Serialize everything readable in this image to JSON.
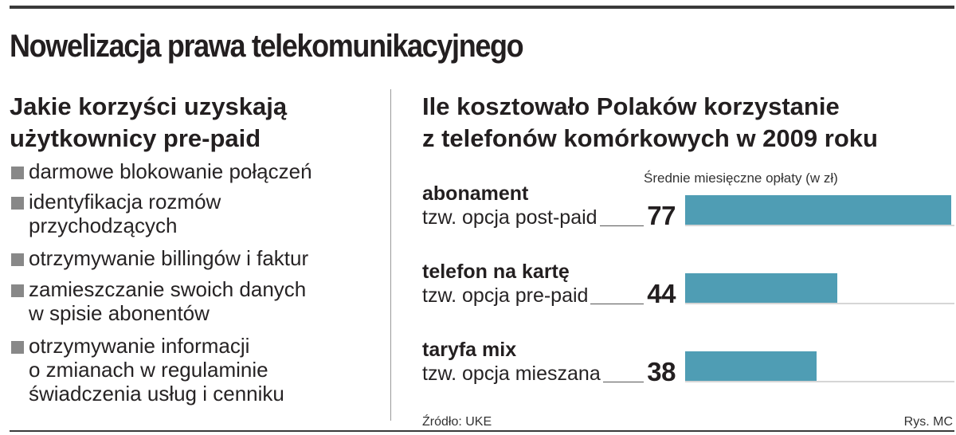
{
  "title": "Nowelizacja prawa telekomunikacyjnego",
  "left_panel": {
    "heading_lines": [
      "Jakie korzyści uzyskają",
      "użytkownicy pre-paid"
    ],
    "benefits": [
      [
        "darmowe blokowanie połączeń"
      ],
      [
        "identyfikacja rozmów",
        "przychodzących"
      ],
      [
        "otrzymywanie billingów i faktur"
      ],
      [
        "zamieszczanie swoich danych",
        "w spisie abonentów"
      ],
      [
        "otrzymywanie informacji",
        "o zmianach w regulaminie",
        "świadczenia usług i cenniku"
      ]
    ]
  },
  "source": "Źródło: UKE",
  "credit": "Rys. MC",
  "chart_data": {
    "type": "bar",
    "orientation": "horizontal",
    "title_lines": [
      "Ile kosztowało Polaków korzystanie",
      "z telefonów komórkowych w 2009 roku"
    ],
    "subtitle": "Średnie miesięczne opłaty (w zł)",
    "unit": "zł",
    "categories": [
      {
        "name": "abonament",
        "description": "tzw. opcja post-paid"
      },
      {
        "name": "telefon na kartę",
        "description": "tzw. opcja pre-paid"
      },
      {
        "name": "taryfa mix",
        "description": "tzw. opcja mieszana"
      }
    ],
    "values": [
      77,
      44,
      38
    ],
    "bar_color": "#4f9db4",
    "grid": false,
    "legend": "none"
  }
}
